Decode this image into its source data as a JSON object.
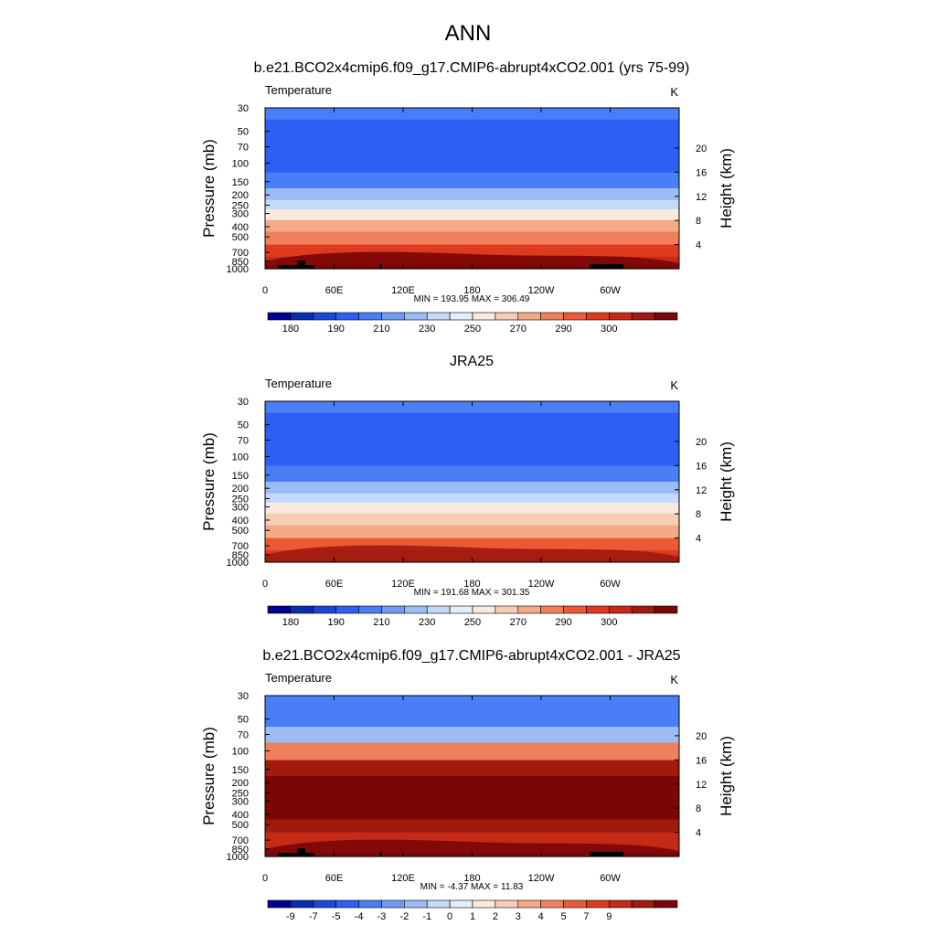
{
  "figure": {
    "title": "ANN"
  },
  "chart_data": [
    {
      "type": "heatmap",
      "title": "b.e21.BCO2x4cmip6.f09_g17.CMIP6-abrupt4xCO2.001 (yrs 75-99)",
      "variable": "Temperature",
      "units": "K",
      "ylabel": "Pressure (mb)",
      "ylabel_right": "Height (km)",
      "x_ticks": [
        "0",
        "60E",
        "120E",
        "180",
        "120W",
        "60W"
      ],
      "y_ticks": [
        "30",
        "50",
        "70",
        "100",
        "150",
        "200",
        "250",
        "300",
        "400",
        "500",
        "700",
        "850",
        "1000"
      ],
      "y_right_ticks": [
        "20",
        "16",
        "12",
        "8",
        "4"
      ],
      "stats": "MIN = 193.95  MAX = 306.49",
      "colorbar_labels": [
        "180",
        "190",
        "210",
        "230",
        "250",
        "270",
        "290",
        "300"
      ],
      "colorbar_colors": [
        "#000090",
        "#0a2db0",
        "#1b47d6",
        "#2e5ff5",
        "#4a7ef7",
        "#6f9bf3",
        "#9bbcf5",
        "#c5daf9",
        "#e3eefb",
        "#fae9dd",
        "#f7cdb6",
        "#f4a987",
        "#f07f5b",
        "#ea5a36",
        "#de3a1e",
        "#c52a16",
        "#a01a0e",
        "#7a0606"
      ],
      "field": {
        "levels": [
          "30",
          "50",
          "70",
          "100",
          "150",
          "200",
          "250",
          "300",
          "400",
          "500",
          "700",
          "850",
          "1000"
        ],
        "color_index": [
          4,
          3,
          3,
          3,
          4,
          6,
          7,
          9,
          11,
          12,
          14,
          15,
          16
        ]
      },
      "topography_mask": true
    },
    {
      "type": "heatmap",
      "title": "JRA25",
      "variable": "Temperature",
      "units": "K",
      "ylabel": "Pressure (mb)",
      "ylabel_right": "Height (km)",
      "x_ticks": [
        "0",
        "60E",
        "120E",
        "180",
        "120W",
        "60W"
      ],
      "y_ticks": [
        "30",
        "50",
        "70",
        "100",
        "150",
        "200",
        "250",
        "300",
        "400",
        "500",
        "700",
        "850",
        "1000"
      ],
      "y_right_ticks": [
        "20",
        "16",
        "12",
        "8",
        "4"
      ],
      "stats": "MIN = 191.68  MAX = 301.35",
      "colorbar_labels": [
        "180",
        "190",
        "210",
        "230",
        "250",
        "270",
        "290",
        "300"
      ],
      "colorbar_colors": [
        "#000090",
        "#0a2db0",
        "#1b47d6",
        "#2e5ff5",
        "#4a7ef7",
        "#6f9bf3",
        "#9bbcf5",
        "#c5daf9",
        "#e3eefb",
        "#fae9dd",
        "#f7cdb6",
        "#f4a987",
        "#f07f5b",
        "#ea5a36",
        "#de3a1e",
        "#c52a16",
        "#a01a0e",
        "#7a0606"
      ],
      "field": {
        "levels": [
          "30",
          "50",
          "70",
          "100",
          "150",
          "200",
          "250",
          "300",
          "400",
          "500",
          "700",
          "850",
          "1000"
        ],
        "color_index": [
          4,
          3,
          3,
          3,
          4,
          6,
          7,
          9,
          10,
          11,
          13,
          14,
          15
        ]
      },
      "topography_mask": false
    },
    {
      "type": "heatmap",
      "title": "b.e21.BCO2x4cmip6.f09_g17.CMIP6-abrupt4xCO2.001 - JRA25",
      "variable": "Temperature",
      "units": "K",
      "ylabel": "Pressure (mb)",
      "ylabel_right": "Height (km)",
      "x_ticks": [
        "0",
        "60E",
        "120E",
        "180",
        "120W",
        "60W"
      ],
      "y_ticks": [
        "30",
        "50",
        "70",
        "100",
        "150",
        "200",
        "250",
        "300",
        "400",
        "500",
        "700",
        "850",
        "1000"
      ],
      "y_right_ticks": [
        "20",
        "16",
        "12",
        "8",
        "4"
      ],
      "stats": "MIN =  -4.37  MAX =  11.83",
      "colorbar_labels": [
        "-9",
        "-7",
        "-5",
        "-4",
        "-3",
        "-2",
        "-1",
        "0",
        "1",
        "2",
        "3",
        "4",
        "5",
        "7",
        "9"
      ],
      "colorbar_colors": [
        "#000090",
        "#0a2db0",
        "#1b47d6",
        "#2e5ff5",
        "#4a7ef7",
        "#6f9bf3",
        "#9bbcf5",
        "#c5daf9",
        "#e3eefb",
        "#fae9dd",
        "#f7cdb6",
        "#f4a987",
        "#f07f5b",
        "#ea5a36",
        "#de3a1e",
        "#c52a16",
        "#a01a0e",
        "#7a0606"
      ],
      "field": {
        "levels": [
          "30",
          "50",
          "70",
          "100",
          "150",
          "200",
          "250",
          "300",
          "400",
          "500",
          "700",
          "850",
          "1000"
        ],
        "color_index": [
          4,
          4,
          6,
          12,
          16,
          17,
          17,
          17,
          17,
          16,
          15,
          15,
          16
        ]
      },
      "topography_mask": true
    }
  ]
}
